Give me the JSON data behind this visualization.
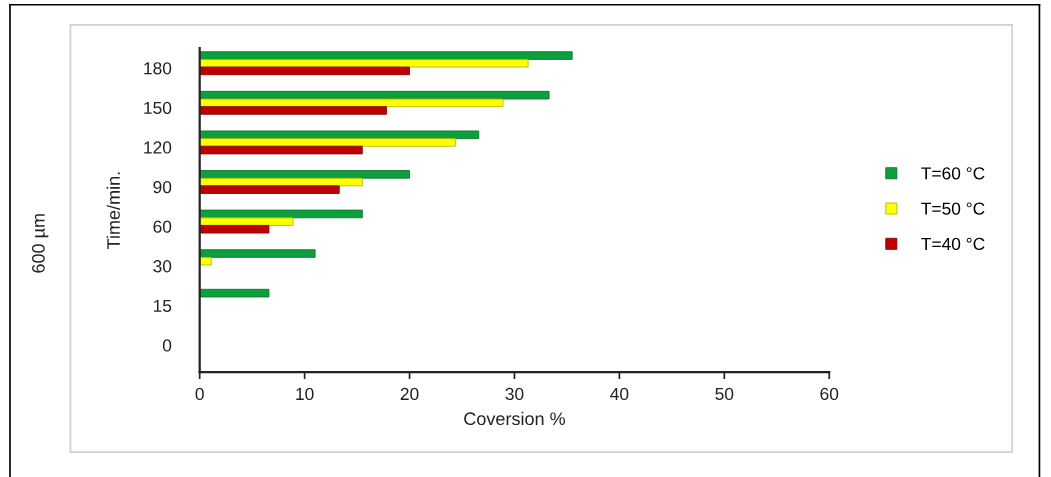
{
  "chart_data": {
    "type": "bar",
    "orientation": "horizontal",
    "categories": [
      "180",
      "150",
      "120",
      "90",
      "60",
      "30",
      "15",
      "0"
    ],
    "series": [
      {
        "name": "T=60 °C",
        "color": "#0ca03c",
        "values": [
          35.5,
          33.3,
          26.6,
          20,
          15.5,
          11,
          6.6,
          null
        ]
      },
      {
        "name": "T=50 °C",
        "color": "#ffff00",
        "values": [
          31.3,
          28.9,
          24.4,
          15.5,
          8.9,
          1.1,
          null,
          null
        ]
      },
      {
        "name": "T=40 °C",
        "color": "#c00000",
        "values": [
          20,
          17.8,
          15.5,
          13.3,
          6.6,
          null,
          null,
          null
        ]
      }
    ],
    "xlabel": "Coversion %",
    "ylabel": "Time/min.",
    "xlim": [
      0,
      60
    ],
    "xticks": [
      0,
      10,
      20,
      30,
      40,
      50,
      60
    ],
    "legend": "right",
    "grid": false,
    "annotations": [
      "600 µm"
    ]
  }
}
